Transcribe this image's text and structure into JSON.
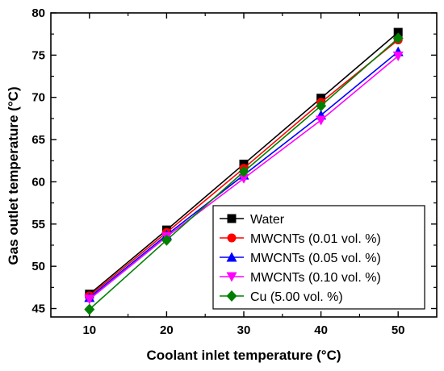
{
  "chart_data": {
    "type": "line",
    "xlabel": "Coolant inlet temperature (°C)",
    "ylabel": "Gas outlet temperature (°C)",
    "x": [
      10,
      20,
      30,
      40,
      50
    ],
    "xlim": [
      5,
      55
    ],
    "ylim": [
      44,
      80
    ],
    "xticks": [
      10,
      20,
      30,
      40,
      50
    ],
    "yticks": [
      45,
      50,
      55,
      60,
      65,
      70,
      75,
      80
    ],
    "grid": false,
    "legend_position": "bottom-right",
    "series": [
      {
        "name": "Water",
        "color": "#000000",
        "marker": "square",
        "values": [
          46.7,
          54.3,
          62.1,
          69.9,
          77.7
        ]
      },
      {
        "name": "MWCNTs (0.01 vol. %)",
        "color": "#ff0000",
        "marker": "circle",
        "values": [
          46.5,
          54.0,
          61.6,
          69.4,
          76.8
        ]
      },
      {
        "name": "MWCNTs (0.05 vol. %)",
        "color": "#0000ff",
        "marker": "triangle-up",
        "values": [
          46.3,
          53.7,
          60.8,
          67.9,
          75.4
        ]
      },
      {
        "name": "MWCNTs (0.10 vol. %)",
        "color": "#ff00ff",
        "marker": "triangle-down",
        "values": [
          46.1,
          53.5,
          60.4,
          67.3,
          74.9
        ]
      },
      {
        "name": "Cu (5.00 vol. %)",
        "color": "#008000",
        "marker": "diamond",
        "values": [
          44.9,
          53.1,
          61.2,
          69.0,
          77.0
        ]
      }
    ]
  }
}
